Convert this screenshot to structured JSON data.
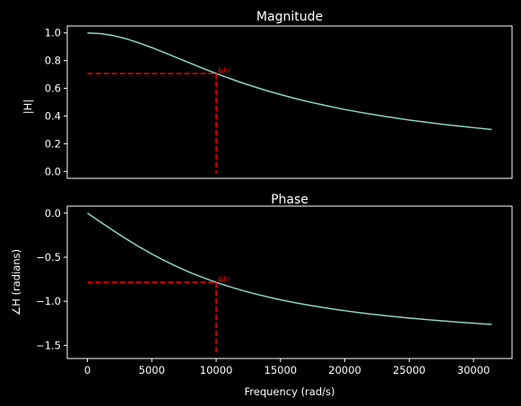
{
  "style": {
    "background": "#000000",
    "foreground": "#ffffff",
    "curve_color": "#8dd3c7",
    "marker_color": "#ff0000"
  },
  "chart_data": [
    {
      "type": "line",
      "title": "Magnitude",
      "xlabel": "",
      "ylabel": "|H|",
      "xlim": [
        -1570,
        32990
      ],
      "ylim": [
        -0.05,
        1.05
      ],
      "x_ticks": [],
      "y_ticks": [
        0.0,
        0.2,
        0.4,
        0.6,
        0.8,
        1.0
      ],
      "y_tick_labels": [
        "0.0",
        "0.2",
        "0.4",
        "0.6",
        "0.8",
        "1.0"
      ],
      "series": [
        {
          "x": [
            0,
            1000,
            2000,
            3000,
            4000,
            5000,
            6000,
            7000,
            8000,
            9000,
            10000,
            11000,
            12000,
            13000,
            14000,
            15000,
            16000,
            17000,
            18000,
            19000,
            20000,
            21000,
            22000,
            23000,
            24000,
            25000,
            26000,
            27000,
            28000,
            29000,
            30000,
            31416
          ],
          "y": [
            1.0,
            0.995,
            0.981,
            0.958,
            0.928,
            0.894,
            0.857,
            0.819,
            0.781,
            0.743,
            0.707,
            0.673,
            0.64,
            0.61,
            0.581,
            0.555,
            0.53,
            0.507,
            0.486,
            0.466,
            0.447,
            0.43,
            0.414,
            0.399,
            0.385,
            0.371,
            0.359,
            0.347,
            0.336,
            0.326,
            0.316,
            0.303
          ]
        }
      ],
      "annotation": {
        "label": "ω₀",
        "x": 10000,
        "y": 0.707
      }
    },
    {
      "type": "line",
      "title": "Phase",
      "xlabel": "Frequency (rad/s)",
      "ylabel": "∠H (radians)",
      "xlim": [
        -1570,
        32990
      ],
      "ylim": [
        -1.649,
        0.079
      ],
      "x_ticks": [
        0,
        5000,
        10000,
        15000,
        20000,
        25000,
        30000
      ],
      "x_tick_labels": [
        "0",
        "5000",
        "10000",
        "15000",
        "20000",
        "25000",
        "30000"
      ],
      "y_ticks": [
        0.0,
        -0.5,
        -1.0,
        -1.5
      ],
      "y_tick_labels": [
        "0.0",
        "−0.5",
        "−1.0",
        "−1.5"
      ],
      "series": [
        {
          "x": [
            0,
            1000,
            2000,
            3000,
            4000,
            5000,
            6000,
            7000,
            8000,
            9000,
            10000,
            11000,
            12000,
            13000,
            14000,
            15000,
            16000,
            17000,
            18000,
            19000,
            20000,
            21000,
            22000,
            23000,
            24000,
            25000,
            26000,
            27000,
            28000,
            29000,
            30000,
            31416
          ],
          "y": [
            0.0,
            -0.0997,
            -0.1974,
            -0.2915,
            -0.3805,
            -0.4636,
            -0.5404,
            -0.6107,
            -0.6747,
            -0.7328,
            -0.7854,
            -0.833,
            -0.8761,
            -0.9151,
            -0.9505,
            -0.9828,
            -1.0122,
            -1.0391,
            -1.0637,
            -1.0863,
            -1.1071,
            -1.1264,
            -1.1442,
            -1.1607,
            -1.176,
            -1.1903,
            -1.2036,
            -1.2161,
            -1.2278,
            -1.2387,
            -1.249,
            -1.2626
          ]
        }
      ],
      "annotation": {
        "label": "ω₀",
        "x": 10000,
        "y": -0.7854
      }
    }
  ]
}
